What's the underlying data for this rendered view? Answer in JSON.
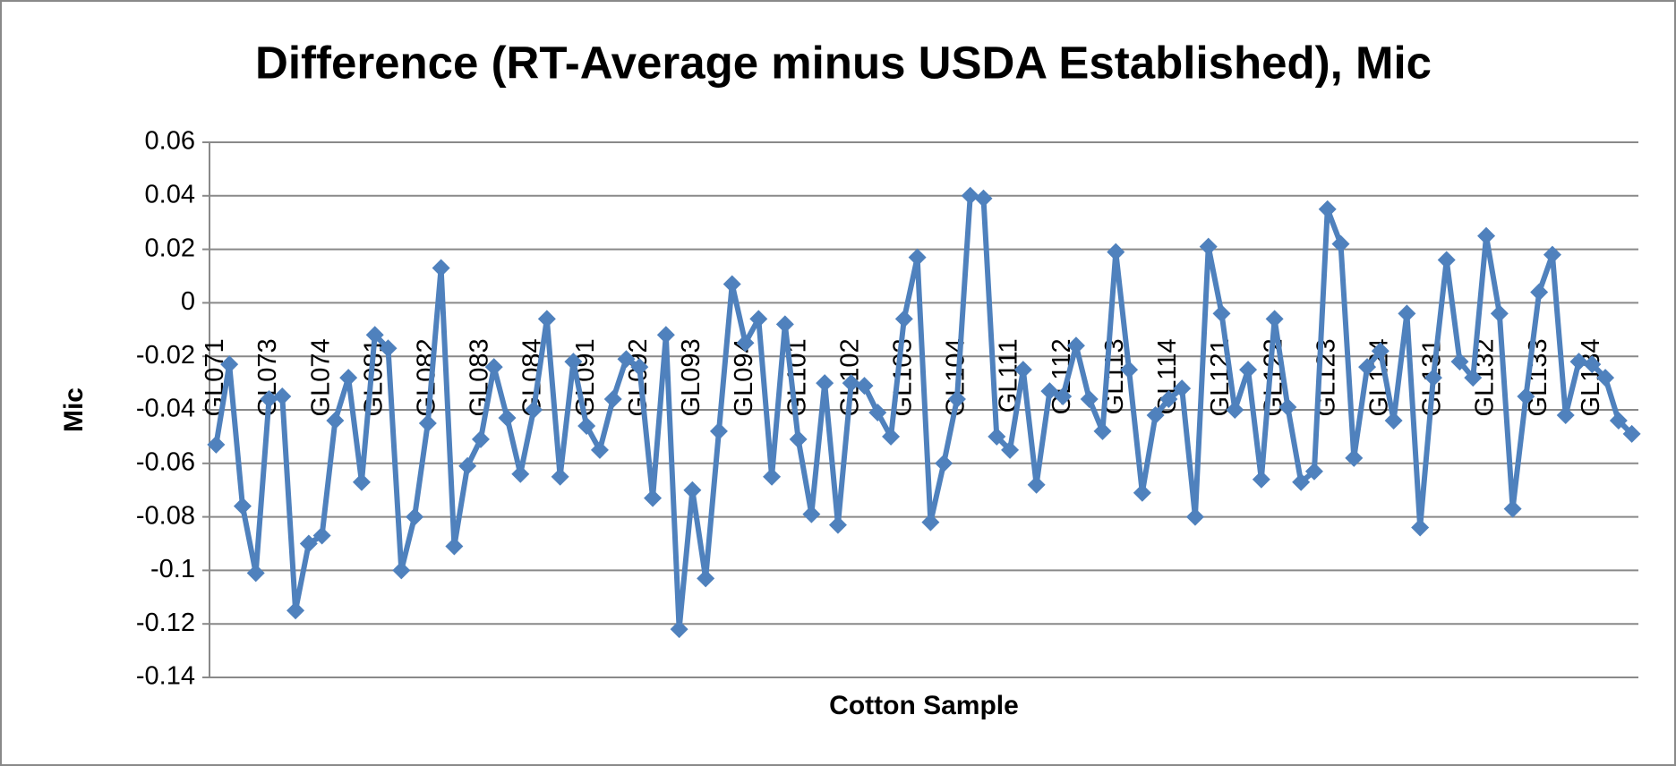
{
  "chart_data": {
    "type": "line",
    "title": "Difference (RT-Average minus USDA Established),  Mic",
    "x_label": "Cotton Sample",
    "y_label": "Mic",
    "categories": [
      "GL071",
      null,
      null,
      null,
      "GL073",
      null,
      null,
      null,
      "GL074",
      null,
      null,
      null,
      "GL081",
      null,
      null,
      null,
      "GL082",
      null,
      null,
      null,
      "GL083",
      null,
      null,
      null,
      "GL084",
      null,
      null,
      null,
      "GL091",
      null,
      null,
      null,
      "GL092",
      null,
      null,
      null,
      "GL093",
      null,
      null,
      null,
      "GL094",
      null,
      null,
      null,
      "GL101",
      null,
      null,
      null,
      "GL102",
      null,
      null,
      null,
      "GL103",
      null,
      null,
      null,
      "GL104",
      null,
      null,
      null,
      "GL111",
      null,
      null,
      null,
      "GL112",
      null,
      null,
      null,
      "GL113",
      null,
      null,
      null,
      "GL114",
      null,
      null,
      null,
      "GL121",
      null,
      null,
      null,
      "GL122",
      null,
      null,
      null,
      "GL123",
      null,
      null,
      null,
      "GL124",
      null,
      null,
      null,
      "GL131",
      null,
      null,
      null,
      "GL132",
      null,
      null,
      null,
      "GL133",
      null,
      null,
      null,
      "GL134",
      null,
      null,
      null
    ],
    "series": [
      {
        "name": "Mic",
        "color": "#4f81bd",
        "values": [
          -0.053,
          -0.023,
          -0.076,
          -0.101,
          -0.036,
          -0.035,
          -0.115,
          -0.09,
          -0.087,
          -0.044,
          -0.028,
          -0.067,
          -0.012,
          -0.017,
          -0.1,
          -0.08,
          -0.045,
          0.013,
          -0.091,
          -0.061,
          -0.051,
          -0.024,
          -0.043,
          -0.064,
          -0.04,
          -0.006,
          -0.065,
          -0.022,
          -0.046,
          -0.055,
          -0.036,
          -0.021,
          -0.024,
          -0.073,
          -0.012,
          -0.122,
          -0.07,
          -0.103,
          -0.048,
          0.007,
          -0.015,
          -0.006,
          -0.065,
          -0.008,
          -0.051,
          -0.079,
          -0.03,
          -0.083,
          -0.03,
          -0.031,
          -0.041,
          -0.05,
          -0.006,
          0.017,
          -0.082,
          -0.06,
          -0.036,
          0.04,
          0.039,
          -0.05,
          -0.055,
          -0.025,
          -0.068,
          -0.033,
          -0.035,
          -0.016,
          -0.036,
          -0.048,
          0.019,
          -0.025,
          -0.071,
          -0.042,
          -0.036,
          -0.032,
          -0.08,
          0.021,
          -0.004,
          -0.04,
          -0.025,
          -0.066,
          -0.006,
          -0.039,
          -0.067,
          -0.063,
          0.035,
          0.022,
          -0.058,
          -0.024,
          -0.018,
          -0.044,
          -0.004,
          -0.084,
          -0.028,
          0.016,
          -0.022,
          -0.028,
          0.025,
          -0.004,
          -0.077,
          -0.035,
          0.004,
          0.018,
          -0.042,
          -0.022,
          -0.023,
          -0.028,
          -0.044,
          -0.049
        ]
      }
    ],
    "ylim": [
      -0.14,
      0.06
    ],
    "yticks": [
      -0.14,
      -0.12,
      -0.1,
      -0.08,
      -0.06,
      -0.04,
      -0.02,
      0,
      0.02,
      0.04,
      0.06
    ],
    "grid": true
  }
}
